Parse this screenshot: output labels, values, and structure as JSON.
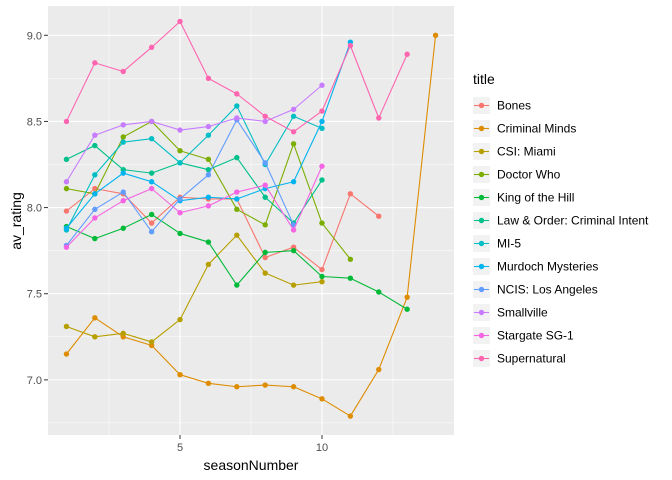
{
  "chart_data": {
    "type": "line",
    "title": "",
    "xlabel": "seasonNumber",
    "ylabel": "av_rating",
    "xlim": [
      0.35,
      14.65
    ],
    "ylim": [
      6.68,
      9.17
    ],
    "x_ticks": [
      5,
      10
    ],
    "x_tick_labels": [
      "5",
      "10"
    ],
    "y_ticks": [
      7.0,
      7.5,
      8.0,
      8.5,
      9.0
    ],
    "y_tick_labels": [
      "7.0",
      "7.5",
      "8.0",
      "8.5",
      "9.0"
    ],
    "grid": true,
    "legend_position": "right",
    "legend_title": "title",
    "series": [
      {
        "name": "Bones",
        "color": "#F8766D",
        "x": [
          1,
          2,
          3,
          4,
          5,
          6,
          7,
          8,
          9,
          10,
          11,
          12
        ],
        "y": [
          7.98,
          8.11,
          8.08,
          7.91,
          8.06,
          8.05,
          8.05,
          7.71,
          7.77,
          7.64,
          8.08,
          7.95
        ]
      },
      {
        "name": "Criminal Minds",
        "color": "#DE8C00",
        "x": [
          1,
          2,
          3,
          4,
          5,
          6,
          7,
          8,
          9,
          10,
          11,
          12,
          13,
          14
        ],
        "y": [
          7.15,
          7.36,
          7.25,
          7.2,
          7.03,
          6.98,
          6.96,
          6.97,
          6.96,
          6.89,
          6.79,
          7.06,
          7.48,
          9.0
        ]
      },
      {
        "name": "CSI: Miami",
        "color": "#B79F00",
        "x": [
          1,
          2,
          3,
          4,
          5,
          6,
          7,
          8,
          9,
          10
        ],
        "y": [
          7.31,
          7.25,
          7.27,
          7.22,
          7.35,
          7.67,
          7.84,
          7.62,
          7.55,
          7.57
        ]
      },
      {
        "name": "Doctor Who",
        "color": "#7CAE00",
        "x": [
          1,
          2,
          3,
          4,
          5,
          6,
          7,
          8,
          9,
          10,
          11
        ],
        "y": [
          8.11,
          8.08,
          8.41,
          8.5,
          8.33,
          8.28,
          7.99,
          7.9,
          8.37,
          7.91,
          7.7
        ]
      },
      {
        "name": "King of the Hill",
        "color": "#00BA38",
        "x": [
          1,
          2,
          3,
          4,
          5,
          6,
          7,
          8,
          9,
          10,
          11,
          12,
          13
        ],
        "y": [
          7.89,
          7.82,
          7.88,
          7.96,
          7.85,
          7.8,
          7.55,
          7.74,
          7.75,
          7.6,
          7.59,
          7.51,
          7.41
        ]
      },
      {
        "name": "Law & Order: Criminal Intent",
        "color": "#00C08B",
        "x": [
          1,
          2,
          3,
          4,
          5,
          6,
          7,
          8,
          9,
          10
        ],
        "y": [
          8.28,
          8.36,
          8.22,
          8.2,
          8.26,
          8.22,
          8.29,
          8.06,
          7.91,
          8.16
        ]
      },
      {
        "name": "MI-5",
        "color": "#00BFC4",
        "x": [
          1,
          2,
          3,
          4,
          5,
          6,
          7,
          8,
          9,
          10
        ],
        "y": [
          7.87,
          8.19,
          8.38,
          8.4,
          8.26,
          8.42,
          8.59,
          8.25,
          8.53,
          8.46
        ]
      },
      {
        "name": "Murdoch Mysteries",
        "color": "#00B4F0",
        "x": [
          1,
          2,
          3,
          4,
          5,
          6,
          7,
          8,
          9,
          10,
          11
        ],
        "y": [
          7.88,
          8.08,
          8.2,
          8.15,
          8.04,
          8.06,
          8.05,
          8.11,
          8.15,
          8.5,
          8.96
        ]
      },
      {
        "name": "NCIS: Los Angeles",
        "color": "#619CFF",
        "x": [
          1,
          2,
          3,
          4,
          5,
          6,
          7,
          8,
          9
        ],
        "y": [
          7.78,
          7.99,
          8.09,
          7.86,
          8.05,
          8.19,
          8.51,
          8.26,
          7.9
        ]
      },
      {
        "name": "Smallville",
        "color": "#C77CFF",
        "x": [
          1,
          2,
          3,
          4,
          5,
          6,
          7,
          8,
          9,
          10
        ],
        "y": [
          8.15,
          8.42,
          8.48,
          8.5,
          8.45,
          8.47,
          8.52,
          8.5,
          8.57,
          8.71
        ]
      },
      {
        "name": "Stargate SG-1",
        "color": "#F564E3",
        "x": [
          1,
          2,
          3,
          4,
          5,
          6,
          7,
          8,
          9,
          10
        ],
        "y": [
          7.77,
          7.94,
          8.04,
          8.11,
          7.97,
          8.01,
          8.09,
          8.13,
          7.87,
          8.24
        ]
      },
      {
        "name": "Supernatural",
        "color": "#FF64B0",
        "x": [
          1,
          2,
          3,
          4,
          5,
          6,
          7,
          8,
          9,
          10,
          11,
          12,
          13
        ],
        "y": [
          8.5,
          8.84,
          8.79,
          8.93,
          9.08,
          8.75,
          8.66,
          8.53,
          8.44,
          8.56,
          8.94,
          8.52,
          8.89
        ]
      }
    ]
  }
}
